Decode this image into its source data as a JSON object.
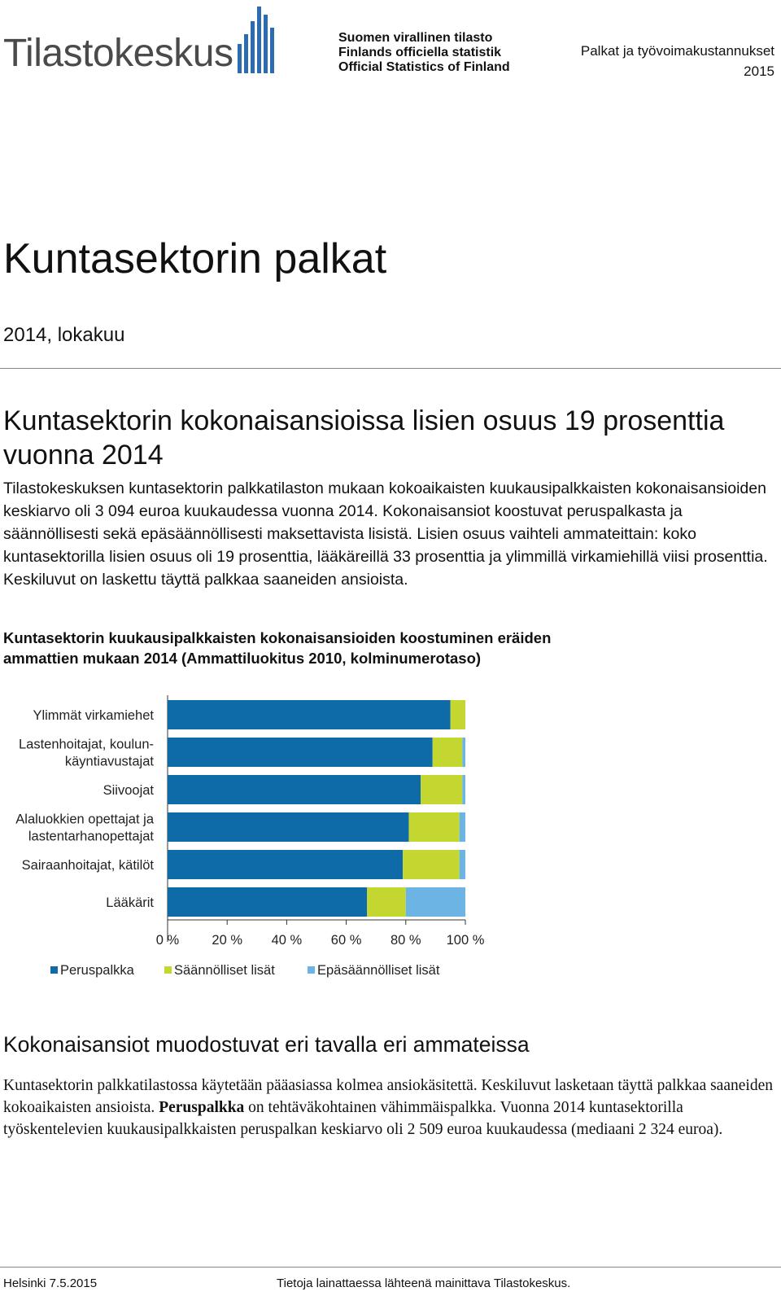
{
  "header": {
    "logo_text": "Tilastokeskus",
    "official_lines": [
      "Suomen virallinen tilasto",
      "Finlands officiella statistik",
      "Official Statistics of Finland"
    ],
    "series": "Palkat ja työvoimakustannukset",
    "year": "2015"
  },
  "title": "Kuntasektorin palkat",
  "date": "2014, lokakuu",
  "subheading": "Kuntasektorin kokonaisansioissa lisien osuus 19 prosenttia vuonna 2014",
  "lead": "Tilastokeskuksen kuntasektorin palkkatilaston mukaan kokoaikaisten kuukausipalkkaisten kokonaisansioiden keskiarvo oli 3 094 euroa kuukaudessa vuonna 2014. Kokonaisansiot koostuvat peruspalkasta ja säännöllisesti sekä epäsäännöllisesti maksettavista lisistä. Lisien osuus vaihteli ammateittain: koko kuntasektorilla lisien osuus oli 19 prosenttia, lääkäreillä 33 prosenttia ja ylimmillä virkamiehillä viisi prosenttia. Keskiluvut on laskettu täyttä palkkaa saaneiden ansioista.",
  "chart_title": "Kuntasektorin kuukausipalkkaisten kokonaisansioiden koostuminen eräiden ammattien mukaan 2014 (Ammattiluokitus 2010, kolminumerotaso)",
  "chart_data": {
    "type": "bar",
    "orientation": "horizontal",
    "stacked": true,
    "categories": [
      [
        "Ylimmät virkamiehet"
      ],
      [
        "Lastenhoitajat, koulun-",
        "käyntiavustajat"
      ],
      [
        "Siivoojat"
      ],
      [
        "Alaluokkien opettajat ja",
        "lastentarhanopettajat"
      ],
      [
        "Sairaanhoitajat, kätilöt"
      ],
      [
        "Lääkärit"
      ]
    ],
    "series": [
      {
        "name": "Peruspalkka",
        "color": "#0e6ba8",
        "values": [
          95,
          89,
          85,
          81,
          79,
          67
        ]
      },
      {
        "name": "Säännölliset lisät",
        "color": "#c4d730",
        "values": [
          5,
          10,
          14,
          17,
          19,
          13
        ]
      },
      {
        "name": "Epäsäännölliset lisät",
        "color": "#6cb4e4",
        "values": [
          0,
          1,
          1,
          2,
          2,
          20
        ]
      }
    ],
    "xlim": [
      0,
      100
    ],
    "xticks": [
      "0 %",
      "20 %",
      "40 %",
      "60 %",
      "80 %",
      "100 %"
    ],
    "legend": "bottom",
    "grid": false
  },
  "section2_heading": "Kokonaisansiot muodostuvat eri tavalla eri ammateissa",
  "section2_body": {
    "part1": "Kuntasektorin palkkatilastossa käytetään pääasiassa kolmea ansiokäsitettä. Keskiluvut lasketaan täyttä palkkaa saaneiden kokoaikaisten ansioista. ",
    "bold": "Peruspalkka",
    "part2": " on tehtäväkohtainen vähimmäispalkka. Vuonna 2014 kuntasektorilla työskentelevien kuukausipalkkaisten peruspalkan keskiarvo oli 2 509 euroa kuukaudessa (mediaani 2 324 euroa)."
  },
  "footer": {
    "left": "Helsinki 7.5.2015",
    "right": "Tietoja lainattaessa lähteenä mainittava Tilastokeskus."
  }
}
